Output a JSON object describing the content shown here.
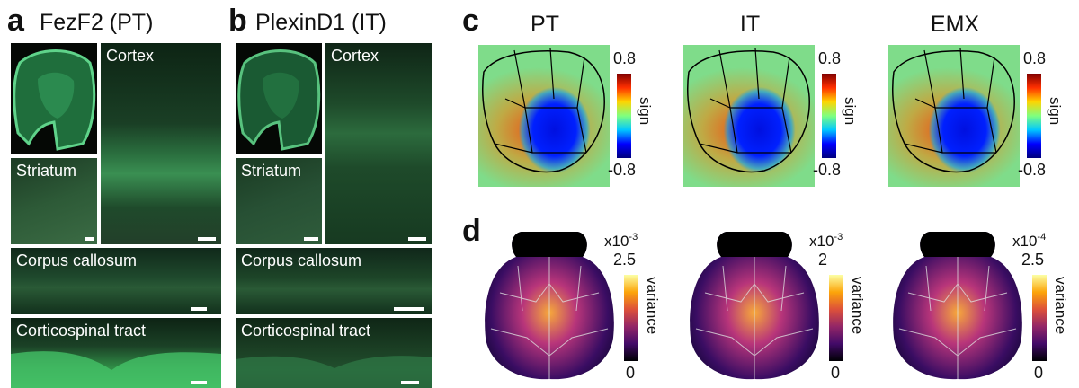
{
  "panel_a": {
    "letter": "a",
    "title": "FezF2 (PT)",
    "labels": {
      "cortex": "Cortex",
      "striatum": "Striatum",
      "corpus_callosum": "Corpus callosum",
      "corticospinal_tract": "Corticospinal tract"
    }
  },
  "panel_b": {
    "letter": "b",
    "title": "PlexinD1 (IT)",
    "labels": {
      "cortex": "Cortex",
      "striatum": "Striatum",
      "corpus_callosum": "Corpus callosum",
      "corticospinal_tract": "Corticospinal tract"
    }
  },
  "panel_c": {
    "letter": "c",
    "maps": [
      {
        "title": "PT",
        "cbar_max": "0.8",
        "cbar_min": "-0.8",
        "cbar_label": "sign"
      },
      {
        "title": "IT",
        "cbar_max": "0.8",
        "cbar_min": "-0.8",
        "cbar_label": "sign"
      },
      {
        "title": "EMX",
        "cbar_max": "0.8",
        "cbar_min": "-0.8",
        "cbar_label": "sign"
      }
    ],
    "colormap": [
      "#00007f",
      "#0000ff",
      "#00c8ff",
      "#7fff7f",
      "#ffd400",
      "#ff3000",
      "#800000"
    ]
  },
  "panel_d": {
    "letter": "d",
    "maps": [
      {
        "exp_base": "x10",
        "exp_power": "-3",
        "cbar_max": "2.5",
        "cbar_min": "0",
        "cbar_label": "variance"
      },
      {
        "exp_base": "x10",
        "exp_power": "-3",
        "cbar_max": "2",
        "cbar_min": "0",
        "cbar_label": "variance"
      },
      {
        "exp_base": "x10",
        "exp_power": "-4",
        "cbar_max": "2.5",
        "cbar_min": "0",
        "cbar_label": "variance"
      }
    ],
    "colormap": [
      "#000004",
      "#420a68",
      "#932667",
      "#dd513a",
      "#fca50a",
      "#fcffa4"
    ]
  }
}
